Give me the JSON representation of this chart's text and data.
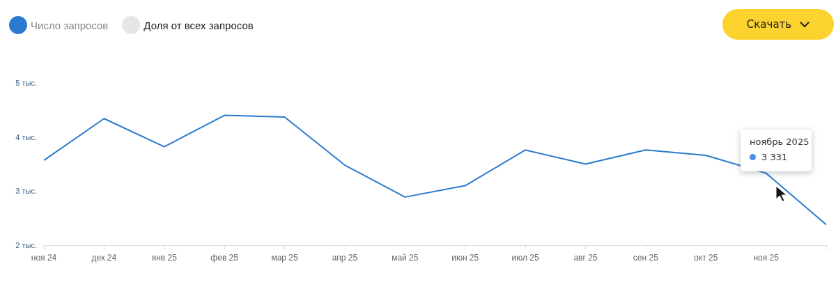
{
  "chart_data": {
    "type": "line",
    "categories": [
      "ноя 24",
      "дек 24",
      "янв 25",
      "фев 25",
      "мар 25",
      "апр 25",
      "май 25",
      "июн 25",
      "июл 25",
      "авг 25",
      "сен 25",
      "окт 25",
      "ноя 25",
      null
    ],
    "series": [
      {
        "name": "Число запросов",
        "color": "#2a7acf",
        "values": [
          3.57,
          4.34,
          3.82,
          4.4,
          4.37,
          3.48,
          2.89,
          3.1,
          3.76,
          3.5,
          3.76,
          3.66,
          3.331,
          2.38
        ]
      },
      {
        "name": "Доля от всех запросов",
        "color": "#e6e6e6",
        "values": [
          null,
          null,
          null,
          null,
          null,
          null,
          null,
          null,
          null,
          null,
          null,
          null,
          null,
          null
        ]
      }
    ],
    "ylim": [
      2,
      5
    ],
    "yticks": [
      {
        "value": 2,
        "label": "2 тыс."
      },
      {
        "value": 3,
        "label": "3 тыс."
      },
      {
        "value": 4,
        "label": "4 тыс."
      },
      {
        "value": 5,
        "label": "5 тыс."
      }
    ],
    "annotations": [
      "ноябрь 2025",
      "3 331",
      "Скачать"
    ],
    "legend": "top left",
    "grid": false,
    "marker": "none",
    "line_style": "solid"
  }
}
